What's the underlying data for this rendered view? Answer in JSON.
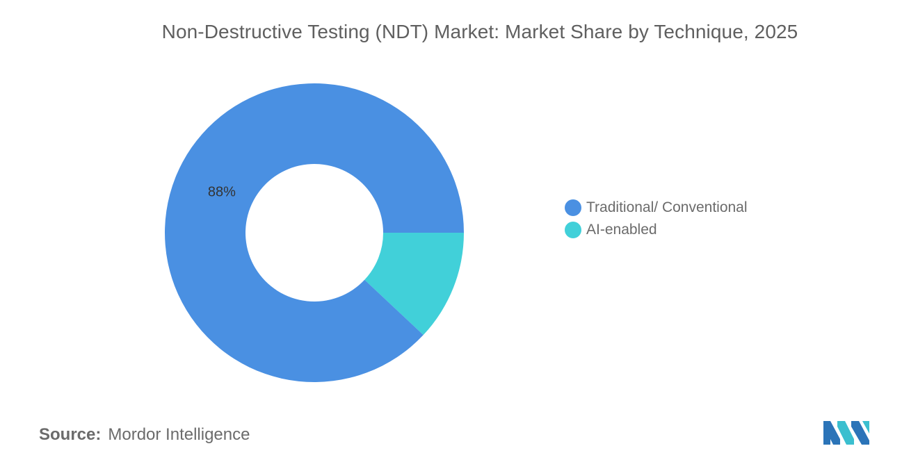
{
  "title": "Non-Destructive Testing (NDT) Market: Market Share by Technique, 2025",
  "source": {
    "label": "Source:",
    "value": "Mordor Intelligence"
  },
  "logo": {
    "icon": "mordor-intelligence-logo",
    "colors": [
      "#2b74b8",
      "#3bbfcf"
    ]
  },
  "chart_data": {
    "type": "pie",
    "variant": "donut",
    "title": "Non-Destructive Testing (NDT) Market: Market Share by Technique, 2025",
    "categories": [
      "Traditional/ Conventional",
      "AI-enabled"
    ],
    "values": [
      88,
      12
    ],
    "data_labels": [
      "88%",
      ""
    ],
    "colors": [
      "#4a90e2",
      "#41d0d9"
    ],
    "legend_position": "right",
    "start": "3 o'clock, clockwise from AI-enabled",
    "grid": false
  }
}
